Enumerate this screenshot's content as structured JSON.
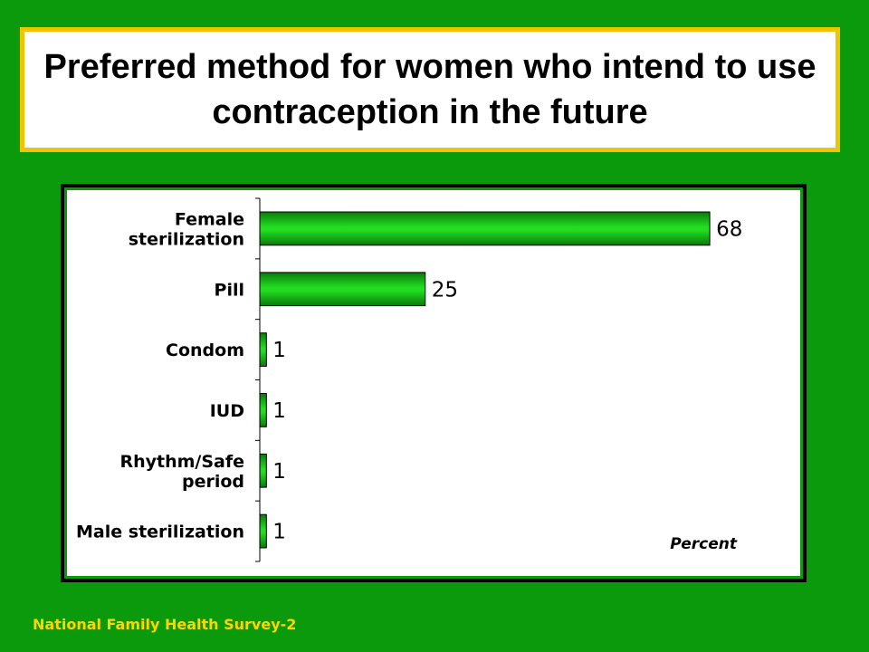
{
  "title": "Preferred method for women who intend to use contraception in the future",
  "footer": "National Family Health Survey-2",
  "colors": {
    "background": "#0b9a0b",
    "title_border": "#f0c400",
    "bar_fill": "#22dd22",
    "footer_text": "#ffd400"
  },
  "chart_data": {
    "type": "bar",
    "orientation": "horizontal",
    "categories": [
      [
        "Female",
        "sterilization"
      ],
      [
        "Pill"
      ],
      [
        "Condom"
      ],
      [
        "IUD"
      ],
      [
        "Rhythm/Safe",
        "period"
      ],
      [
        "Male sterilization"
      ]
    ],
    "values": [
      68,
      25,
      1,
      1,
      1,
      1
    ],
    "value_labels": [
      "68",
      "25",
      "1",
      "1",
      "1",
      "1"
    ],
    "unit_label": "Percent",
    "xlim": [
      0,
      100
    ],
    "grid": false,
    "legend": "none"
  }
}
